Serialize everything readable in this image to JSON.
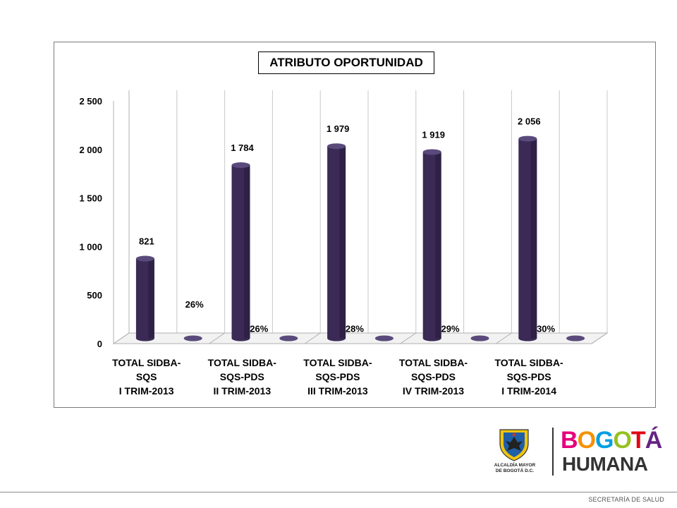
{
  "chart_data": {
    "type": "bar",
    "title": "ATRIBUTO OPORTUNIDAD",
    "categories": [
      [
        "TOTAL SIDBA-",
        "SQS",
        "I TRIM-2013"
      ],
      [
        "TOTAL SIDBA-",
        "SQS-PDS",
        "II TRIM-2013"
      ],
      [
        "TOTAL SIDBA-",
        "SQS-PDS",
        "III TRIM-2013"
      ],
      [
        "TOTAL SIDBA-",
        "SQS-PDS",
        "IV TRIM-2013"
      ],
      [
        "TOTAL SIDBA-",
        "SQS-PDS",
        "I TRIM-2014"
      ]
    ],
    "series": [
      {
        "values": [
          821,
          1784,
          1979,
          1919,
          2056
        ],
        "labels": [
          "821",
          "1 784",
          "1 979",
          "1 919",
          "2 056"
        ],
        "color": "#3a2a55"
      },
      {
        "values": [
          0.26,
          0.26,
          0.28,
          0.29,
          0.3
        ],
        "labels": [
          "26%",
          "26%",
          "28%",
          "29%",
          "30%"
        ],
        "color": "#3a2a55"
      }
    ],
    "ylim": [
      0,
      2500
    ],
    "yticks": [
      0,
      500,
      1000,
      1500,
      2000,
      2500
    ],
    "ytick_labels": [
      "0",
      "500",
      "1 000",
      "1 500",
      "2 000",
      "2 500"
    ],
    "grid": true,
    "legend": false
  },
  "logo": {
    "alcaldia": [
      "ALCALDÍA MAYOR",
      "DE BOGOTÁ D.C."
    ],
    "brand_line1": "BOGOTÁ",
    "brand_line2": "HUMANA",
    "brand_colors": [
      "#e4007c",
      "#f39200",
      "#009fe3",
      "#95c11f",
      "#e30613",
      "#662483"
    ]
  },
  "footer": {
    "text": "SECRETARÍA DE SALUD"
  }
}
